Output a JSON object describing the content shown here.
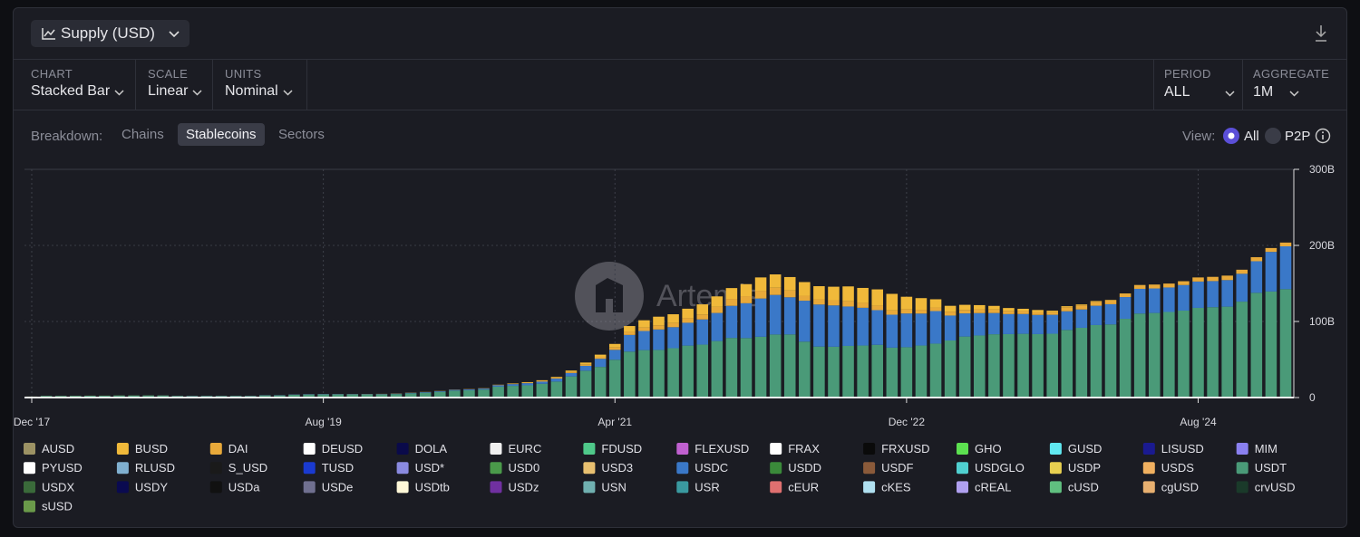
{
  "ui": {
    "title": "Supply (USD)",
    "controls": [
      {
        "label": "CHART",
        "value": "Stacked Bar"
      },
      {
        "label": "SCALE",
        "value": "Linear"
      },
      {
        "label": "UNITS",
        "value": "Nominal"
      }
    ],
    "right_controls": [
      {
        "label": "PERIOD",
        "value": "ALL"
      },
      {
        "label": "AGGREGATE",
        "value": "1M"
      }
    ],
    "breakdown_label": "Breakdown:",
    "breakdown_tabs": [
      "Chains",
      "Stablecoins",
      "Sectors"
    ],
    "active_tab": 1,
    "view_label": "View:",
    "view_options": [
      "All",
      "P2P"
    ],
    "watermark": "Artemis"
  },
  "chart_data": {
    "type": "bar",
    "stacked": true,
    "scale": "linear",
    "grid": true,
    "categories": [
      "Dec '17",
      null,
      null,
      null,
      null,
      null,
      null,
      null,
      null,
      null,
      null,
      null,
      null,
      null,
      null,
      null,
      null,
      null,
      null,
      null,
      "Aug '19",
      null,
      null,
      null,
      null,
      null,
      null,
      null,
      null,
      null,
      null,
      null,
      null,
      null,
      null,
      null,
      null,
      null,
      null,
      null,
      "Apr '21",
      null,
      null,
      null,
      null,
      null,
      null,
      null,
      null,
      null,
      null,
      null,
      null,
      null,
      null,
      null,
      null,
      null,
      null,
      null,
      "Dec '22",
      null,
      null,
      null,
      null,
      null,
      null,
      null,
      null,
      null,
      null,
      null,
      null,
      null,
      null,
      null,
      null,
      null,
      null,
      null,
      "Aug '24",
      null,
      null,
      null,
      null,
      null,
      null
    ],
    "ylim": [
      0,
      300
    ],
    "yticks": [
      0,
      {
        "value": 100,
        "label": "100B"
      },
      {
        "value": 200,
        "label": "200B"
      },
      {
        "value": 300,
        "label": "300B"
      }
    ],
    "series": [
      {
        "name": "AUSD",
        "color": "#9c9264"
      },
      {
        "name": "BUSD",
        "color": "#f0b93a",
        "values": [
          0,
          0,
          0,
          0,
          0,
          0,
          0,
          0,
          0,
          0,
          0,
          0,
          0,
          0,
          0,
          0,
          0,
          0,
          0,
          0,
          0,
          0.02,
          0.05,
          0.1,
          0.15,
          0.16,
          0.17,
          0.18,
          0.2,
          0.2,
          0.3,
          0.3,
          0.4,
          0.5,
          0.6,
          0.8,
          1.0,
          1.7,
          2.3,
          2.8,
          4.7,
          7.6,
          9.5,
          11.3,
          11.6,
          12.5,
          13.3,
          13.8,
          14.2,
          15.8,
          17.5,
          17.5,
          17.5,
          17.9,
          17.3,
          17.7,
          19.5,
          19.8,
          21.5,
          21.8,
          16.6,
          15.3,
          10.8,
          7.9,
          6.7,
          5.5,
          4.8,
          3.8,
          3.1,
          2.6,
          1.9,
          1.4,
          1.3,
          1.1,
          0.9,
          0.5,
          0.3,
          0.2,
          0.1,
          0.1,
          0.1,
          0.1,
          0.1,
          0.06,
          0.06,
          0.06,
          0.06
        ]
      },
      {
        "name": "DAI",
        "color": "#e8a93a",
        "values": [
          0.05,
          0.06,
          0.07,
          0.07,
          0.08,
          0.07,
          0.07,
          0.06,
          0.06,
          0.07,
          0.08,
          0.07,
          0.07,
          0.09,
          0.08,
          0.08,
          0.08,
          0.08,
          0.09,
          0.09,
          0.09,
          0.09,
          0.09,
          0.09,
          0.1,
          0.11,
          0.11,
          0.1,
          0.11,
          0.12,
          0.12,
          0.13,
          0.3,
          0.5,
          0.8,
          0.97,
          1.2,
          1.5,
          2.0,
          2.6,
          3.1,
          4.1,
          4.6,
          5.5,
          5.4,
          6.0,
          6.5,
          8.0,
          9.1,
          9.3,
          10.2,
          9.5,
          9.1,
          6.6,
          6.8,
          6.9,
          6.9,
          6.3,
          5.8,
          5.6,
          5.4,
          5.0,
          4.7,
          4.9,
          4.6,
          5.0,
          4.6,
          4.2,
          3.8,
          3.9,
          3.5,
          5.3,
          5.3,
          5.1,
          4.7,
          4.3,
          4.8,
          5.0,
          5.1,
          5.0,
          5.3,
          5.5,
          5.8,
          5.3,
          5.3,
          5.0,
          4.9
        ]
      },
      {
        "name": "DEUSD",
        "color": "#ffffff"
      },
      {
        "name": "DOLA",
        "color": "#0a0a4a"
      },
      {
        "name": "EURC",
        "color": "#f0f0f0"
      },
      {
        "name": "FDUSD",
        "color": "#4fc98a"
      },
      {
        "name": "FLEXUSD",
        "color": "#c060d0"
      },
      {
        "name": "FRAX",
        "color": "#ffffff"
      },
      {
        "name": "FRXUSD",
        "color": "#0a0a0a"
      },
      {
        "name": "GHO",
        "color": "#5ce050"
      },
      {
        "name": "GUSD",
        "color": "#60e8f0"
      },
      {
        "name": "LISUSD",
        "color": "#1a1a90"
      },
      {
        "name": "MIM",
        "color": "#8a80f0"
      },
      {
        "name": "PYUSD",
        "color": "#ffffff"
      },
      {
        "name": "RLUSD",
        "color": "#80b0d0"
      },
      {
        "name": "S_USD",
        "color": "#1a1a1a"
      },
      {
        "name": "TUSD",
        "color": "#1a3ad0"
      },
      {
        "name": "USD*",
        "color": "#8a8ae0"
      },
      {
        "name": "USD0",
        "color": "#4a9a4a"
      },
      {
        "name": "USD3",
        "color": "#e8c070"
      },
      {
        "name": "USDC",
        "color": "#3a78c8",
        "values": [
          0,
          0,
          0,
          0,
          0,
          0,
          0,
          0,
          0,
          0.1,
          0.2,
          0.3,
          0.25,
          0.25,
          0.25,
          0.27,
          0.3,
          0.35,
          0.4,
          0.45,
          0.5,
          0.45,
          0.45,
          0.48,
          0.5,
          0.5,
          0.6,
          0.7,
          0.8,
          1.0,
          1.1,
          1.3,
          1.8,
          2.3,
          2.8,
          2.9,
          3.9,
          4.5,
          6.4,
          10.7,
          13.0,
          21.9,
          25.1,
          26.9,
          27.6,
          30.0,
          33.1,
          36.9,
          42.2,
          45.8,
          50.3,
          52.0,
          48.8,
          53.8,
          55.3,
          54.3,
          51.8,
          49.6,
          45.6,
          43.3,
          44.3,
          42.0,
          42.8,
          32.8,
          30.4,
          29.4,
          27.9,
          26.3,
          26.0,
          25.2,
          24.9,
          24.5,
          24.1,
          25.4,
          26.6,
          28.6,
          32.5,
          32.2,
          32.2,
          33.6,
          34.6,
          34.3,
          34.9,
          36.6,
          41.5,
          52.1,
          56.3
        ]
      },
      {
        "name": "USDD",
        "color": "#3a8a3a"
      },
      {
        "name": "USDF",
        "color": "#8a5a3a"
      },
      {
        "name": "USDGLO",
        "color": "#50d0d0"
      },
      {
        "name": "USDP",
        "color": "#e8d050"
      },
      {
        "name": "USDS",
        "color": "#f0b060"
      },
      {
        "name": "USDT",
        "color": "#4a9a78",
        "values": [
          1.3,
          2.2,
          2.2,
          2.3,
          2.4,
          2.4,
          2.7,
          2.7,
          2.8,
          2.7,
          2.1,
          1.8,
          2.0,
          2.0,
          2.0,
          2.0,
          2.8,
          2.8,
          3.6,
          4.0,
          4.1,
          4.1,
          4.1,
          4.1,
          4.1,
          4.6,
          5.6,
          6.4,
          7.6,
          9.1,
          9.6,
          10.5,
          14.4,
          15.4,
          16.1,
          18.1,
          21.0,
          27.8,
          35.3,
          40.3,
          49.7,
          60.4,
          62.4,
          62.6,
          64.9,
          68.3,
          69.6,
          74.3,
          78.4,
          78.2,
          79.9,
          82.9,
          83.0,
          73.5,
          67.0,
          66.8,
          67.9,
          68.4,
          69.3,
          65.6,
          66.2,
          68.4,
          70.9,
          75.0,
          80.2,
          81.6,
          83.2,
          83.4,
          83.8,
          83.4,
          83.9,
          88.9,
          91.7,
          95.3,
          96.1,
          103.5,
          110.4,
          111.2,
          112.5,
          114.3,
          117.9,
          118.8,
          119.5,
          126.1,
          137.7,
          139.4,
          142.5
        ]
      },
      {
        "name": "USDX",
        "color": "#3a6a3a"
      },
      {
        "name": "USDY",
        "color": "#0a0a50"
      },
      {
        "name": "USDa",
        "color": "#111111"
      },
      {
        "name": "USDe",
        "color": "#707090"
      },
      {
        "name": "USDtb",
        "color": "#fff8d8"
      },
      {
        "name": "USDz",
        "color": "#7030a0"
      },
      {
        "name": "USN",
        "color": "#70b0b0"
      },
      {
        "name": "USR",
        "color": "#3a9aa0"
      },
      {
        "name": "cEUR",
        "color": "#e07070"
      },
      {
        "name": "cKES",
        "color": "#b0e0f0"
      },
      {
        "name": "cREAL",
        "color": "#b0a0f0"
      },
      {
        "name": "cUSD",
        "color": "#60c080"
      },
      {
        "name": "cgUSD",
        "color": "#e8b070"
      },
      {
        "name": "crvUSD",
        "color": "#1a3a2a"
      },
      {
        "name": "sUSD",
        "color": "#6a9a4a"
      }
    ]
  }
}
